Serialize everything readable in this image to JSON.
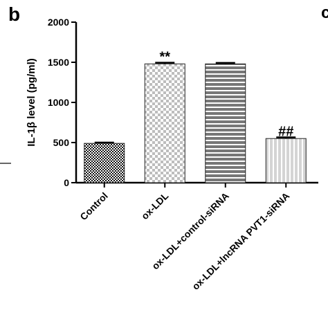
{
  "panel_label": "b",
  "adjacent_panel_label": "c",
  "chart_data": {
    "type": "bar",
    "ylabel": "IL-1β level (pg/ml)",
    "ylim": [
      0,
      2000
    ],
    "yticks": [
      "0",
      "500",
      "1000",
      "1500",
      "2000"
    ],
    "categories": [
      "Control",
      "ox-LDL",
      "ox-LDL+control-siRNA",
      "ox-LDL+lncRNA PVT1-siRNA"
    ],
    "values": [
      490,
      1480,
      1480,
      550
    ],
    "errors": [
      10,
      15,
      12,
      15
    ],
    "annotations": [
      "",
      "**",
      "",
      "##"
    ],
    "patterns": [
      "checker-dark",
      "checker-light",
      "horizontal-stripes",
      "vertical-stripes-light"
    ]
  }
}
